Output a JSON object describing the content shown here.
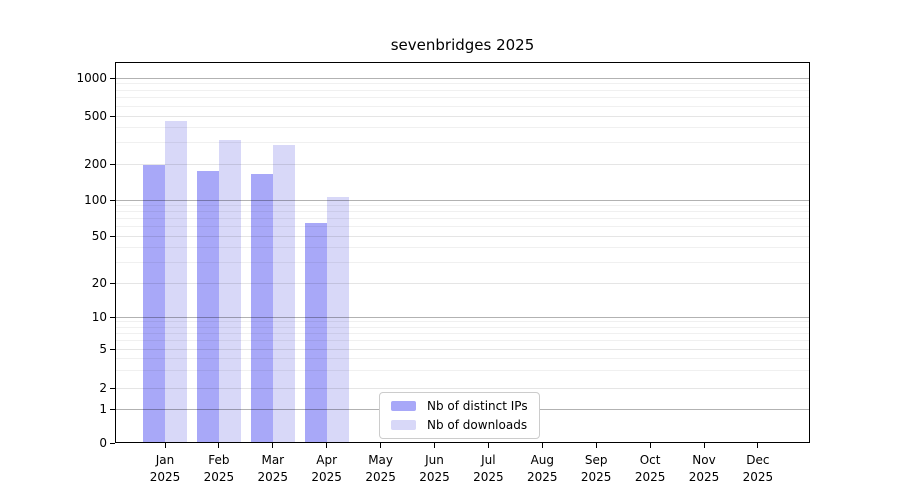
{
  "chart_data": {
    "type": "bar",
    "title": "sevenbridges 2025",
    "year": "2025",
    "categories": [
      "Jan",
      "Feb",
      "Mar",
      "Apr",
      "May",
      "Jun",
      "Jul",
      "Aug",
      "Sep",
      "Oct",
      "Nov",
      "Dec"
    ],
    "series": [
      {
        "name": "Nb of distinct IPs",
        "color": "#a8a8f8",
        "values": [
          195,
          175,
          165,
          64,
          0,
          0,
          0,
          0,
          0,
          0,
          0,
          0
        ]
      },
      {
        "name": "Nb of downloads",
        "color": "#d8d8f8",
        "values": [
          455,
          315,
          290,
          105,
          0,
          0,
          0,
          0,
          0,
          0,
          0,
          0
        ]
      }
    ],
    "y_axis": {
      "scale": "symlog",
      "ticks": [
        0,
        1,
        2,
        5,
        10,
        20,
        50,
        100,
        200,
        500,
        1000
      ],
      "minor_ticks": [
        3,
        4,
        6,
        7,
        8,
        9,
        30,
        40,
        60,
        70,
        80,
        90,
        300,
        400,
        600,
        700,
        800,
        900
      ],
      "ylim": [
        0,
        1400
      ]
    },
    "x_axis": {
      "label_lines": 2
    },
    "grid": {
      "decade_line_color": "rgba(0,0,0,0.30)",
      "major_line_color": "rgba(0,0,0,0.10)",
      "minor_line_color": "rgba(0,0,0,0.06)"
    },
    "legend": {
      "position": "bottom-center"
    }
  }
}
